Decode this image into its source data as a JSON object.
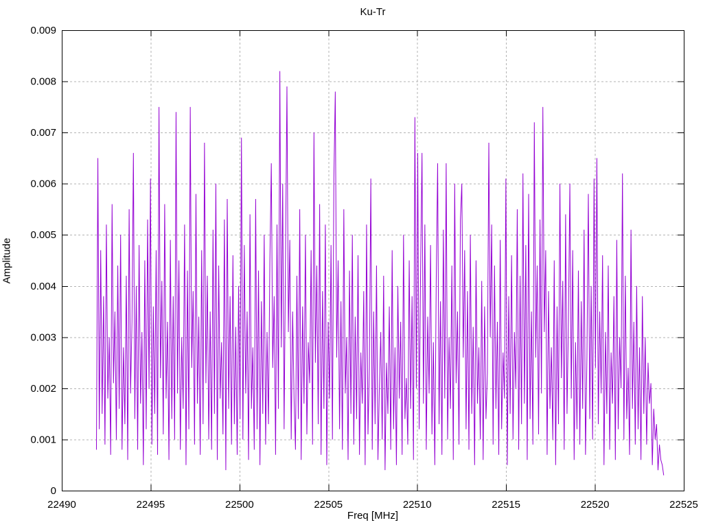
{
  "chart_data": {
    "type": "line",
    "title": "Ku-Tr",
    "xlabel": "Freq [MHz]",
    "ylabel": "Amplitude",
    "xlim": [
      22490,
      22525
    ],
    "ylim": [
      0,
      0.009
    ],
    "x_ticks": [
      22490,
      22495,
      22500,
      22505,
      22510,
      22515,
      22520,
      22525
    ],
    "x_tick_labels": [
      "22490",
      "22495",
      "22500",
      "22505",
      "22510",
      "22515",
      "22520",
      "22525"
    ],
    "y_ticks": [
      0,
      0.001,
      0.002,
      0.003,
      0.004,
      0.005,
      0.006,
      0.007,
      0.008,
      0.009
    ],
    "y_tick_labels": [
      "0",
      "0.001",
      "0.002",
      "0.003",
      "0.004",
      "0.005",
      "0.006",
      "0.007",
      "0.008",
      "0.009"
    ],
    "grid": true,
    "grid_style": "dashed",
    "legend_position": "none",
    "line_color": "#9400d3",
    "grid_color": "#b3b3b3",
    "border_color": "#000000",
    "notable_peaks": [
      [
        22492.1,
        0.0065
      ],
      [
        22495.5,
        0.0075
      ],
      [
        22496.4,
        0.0074
      ],
      [
        22497.2,
        0.0075
      ],
      [
        22498.0,
        0.0068
      ],
      [
        22500.1,
        0.0069
      ],
      [
        22502.3,
        0.0082
      ],
      [
        22502.7,
        0.0079
      ],
      [
        22504.2,
        0.007
      ],
      [
        22505.4,
        0.0078
      ],
      [
        22509.9,
        0.0073
      ],
      [
        22511.2,
        0.0064
      ],
      [
        22514.1,
        0.0068
      ],
      [
        22516.6,
        0.0072
      ],
      [
        22517.1,
        0.0075
      ],
      [
        22520.1,
        0.0065
      ],
      [
        22521.5,
        0.0062
      ]
    ],
    "series": {
      "name": "Ku-Tr",
      "x_start": 22491.95,
      "x_step": 0.08,
      "amplitude_unit": 0.0001,
      "amplitudes": [
        8,
        65,
        12,
        47,
        15,
        38,
        9,
        52,
        18,
        30,
        7,
        56,
        21,
        35,
        10,
        44,
        16,
        50,
        8,
        28,
        13,
        42,
        6,
        55,
        19,
        33,
        66,
        14,
        40,
        8,
        48,
        17,
        31,
        5,
        45,
        12,
        53,
        20,
        61,
        9,
        36,
        15,
        47,
        7,
        75,
        22,
        41,
        11,
        56,
        18,
        33,
        6,
        49,
        14,
        38,
        10,
        74,
        19,
        45,
        8,
        30,
        16,
        52,
        5,
        43,
        12,
        75,
        24,
        39,
        9,
        58,
        17,
        34,
        7,
        47,
        13,
        68,
        21,
        42,
        10,
        35,
        8,
        51,
        15,
        60,
        6,
        44,
        18,
        29,
        11,
        53,
        4,
        57,
        16,
        38,
        9,
        46,
        13,
        32,
        7,
        40,
        14,
        69,
        10,
        48,
        19,
        35,
        6,
        54,
        16,
        28,
        8,
        57,
        12,
        43,
        5,
        37,
        15,
        50,
        9,
        31,
        13,
        45,
        64,
        24,
        38,
        7,
        52,
        16,
        82,
        28,
        60,
        12,
        46,
        79,
        31,
        49,
        10,
        35,
        18,
        8,
        42,
        14,
        55,
        6,
        36,
        17,
        50,
        11,
        29,
        21,
        47,
        9,
        70,
        25,
        44,
        13,
        56,
        7,
        39,
        16,
        52,
        5,
        33,
        18,
        48,
        10,
        61,
        78,
        26,
        45,
        12,
        37,
        8,
        55,
        19,
        30,
        6,
        43,
        15,
        50,
        9,
        34,
        14,
        46,
        7,
        27,
        17,
        39,
        5,
        52,
        11,
        24,
        61,
        8,
        35,
        13,
        44,
        6,
        20,
        31,
        10,
        42,
        4,
        25,
        15,
        36,
        8,
        47,
        12,
        28,
        5,
        40,
        18,
        33,
        7,
        50,
        14,
        22,
        9,
        45,
        16,
        38,
        6,
        73,
        20,
        66,
        12,
        43,
        66,
        17,
        52,
        8,
        34,
        19,
        48,
        11,
        29,
        5,
        41,
        64,
        13,
        37,
        7,
        51,
        18,
        64,
        10,
        30,
        16,
        44,
        6,
        60,
        21,
        35,
        9,
        53,
        60,
        26,
        47,
        12,
        39,
        8,
        50,
        15,
        32,
        5,
        45,
        17,
        28,
        10,
        41,
        6,
        36,
        14,
        23,
        68,
        30,
        52,
        9,
        44,
        16,
        33,
        7,
        49,
        12,
        27,
        18,
        61,
        5,
        38,
        15,
        46,
        10,
        31,
        20,
        55,
        8,
        42,
        13,
        62,
        17,
        48,
        6,
        58,
        14,
        35,
        9,
        72,
        26,
        44,
        11,
        53,
        19,
        75,
        31,
        47,
        7,
        39,
        16,
        28,
        10,
        45,
        5,
        36,
        13,
        60,
        22,
        41,
        8,
        54,
        15,
        33,
        60,
        18,
        47,
        6,
        29,
        12,
        43,
        9,
        37,
        16,
        51,
        7,
        26,
        58,
        14,
        40,
        10,
        61,
        24,
        65,
        13,
        35,
        19,
        46,
        5,
        31,
        15,
        44,
        8,
        27,
        17,
        38,
        6,
        49,
        12,
        30,
        20,
        62,
        10,
        42,
        14,
        24,
        7,
        51,
        16,
        33,
        9,
        40,
        12,
        28,
        6,
        38,
        15,
        30,
        9,
        25,
        17,
        21,
        5,
        16,
        10,
        13,
        4,
        9,
        6,
        5,
        3
      ]
    }
  }
}
